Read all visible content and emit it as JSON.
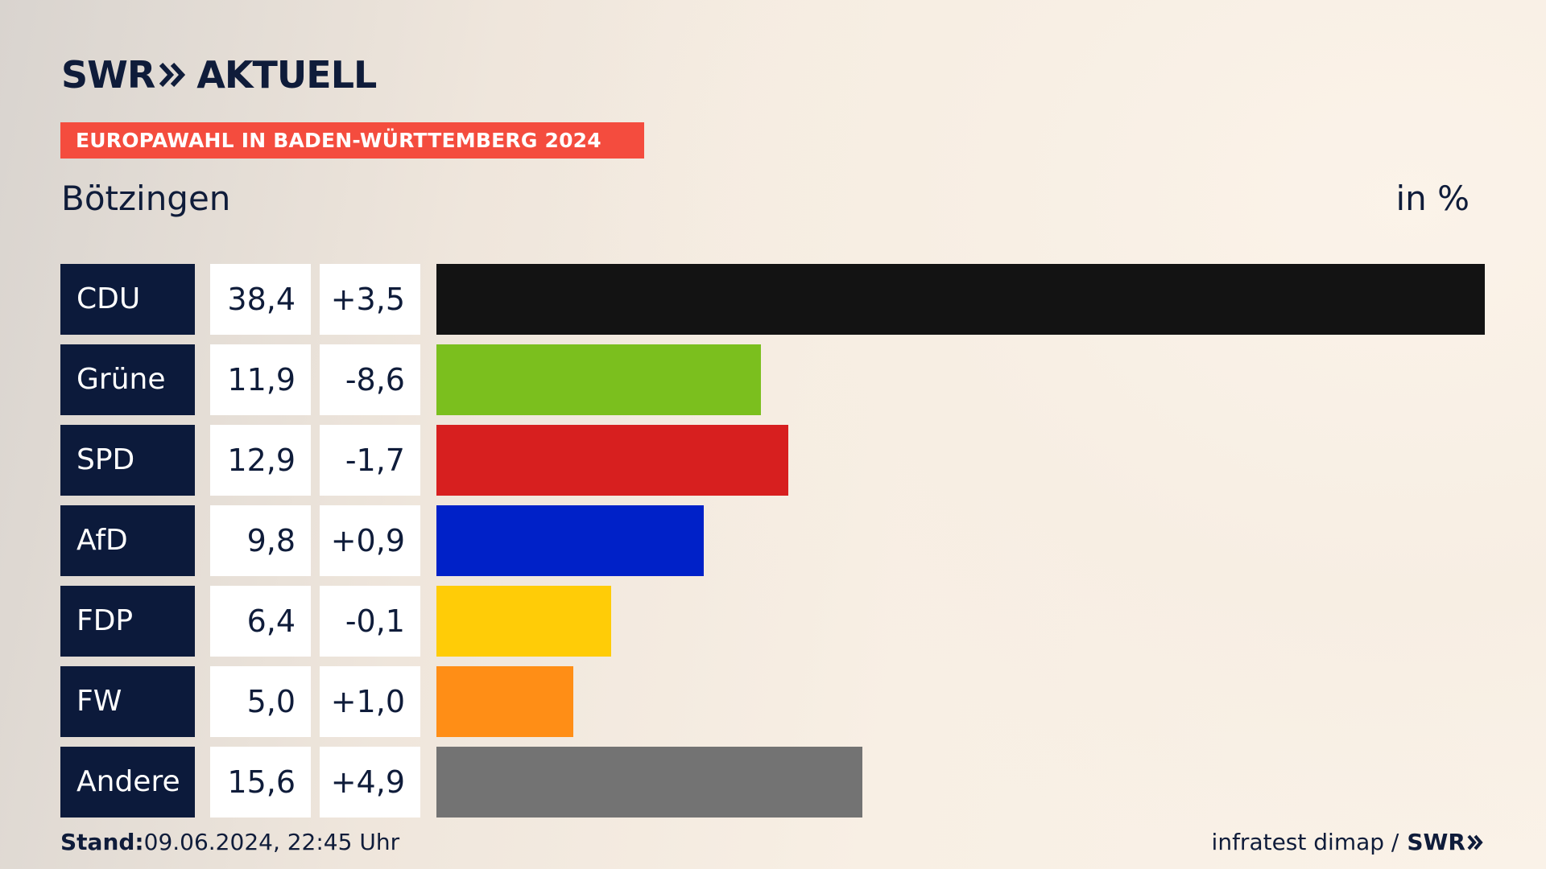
{
  "brand": {
    "logo_left": "SWR",
    "logo_right": "AKTUELL",
    "small_logo": "SWR"
  },
  "banner": "EUROPAWAHL IN BADEN-WÜRTTEMBERG 2024",
  "place": "Bötzingen",
  "unit": "in %",
  "footer": {
    "stand_label": "Stand:",
    "stand_value": "09.06.2024, 22:45 Uhr",
    "source": "infratest dimap /"
  },
  "chart_data": {
    "type": "bar",
    "orientation": "horizontal",
    "categories": [
      "CDU",
      "Grüne",
      "SPD",
      "AfD",
      "FDP",
      "FW",
      "Andere"
    ],
    "values": [
      38.4,
      11.9,
      12.9,
      9.8,
      6.4,
      5.0,
      15.6
    ],
    "value_labels": [
      "38,4",
      "11,9",
      "12,9",
      "9,8",
      "6,4",
      "5,0",
      "15,6"
    ],
    "change_labels": [
      "+3,5",
      "-8,6",
      "-1,7",
      "+0,9",
      "-0,1",
      "+1,0",
      "+4,9"
    ],
    "colors": [
      "#131313",
      "#7bbf1e",
      "#d71f1f",
      "#0021c8",
      "#ffcc07",
      "#ff8e16",
      "#737373"
    ],
    "xlim": [
      0,
      38.4
    ],
    "grid": false
  }
}
